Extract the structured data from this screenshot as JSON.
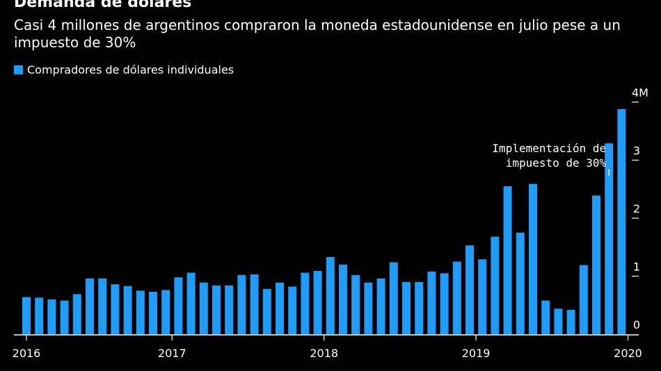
{
  "chart_data": {
    "type": "bar",
    "title": "Demanda de dólares",
    "subtitle": "Casi 4 millones de argentinos compraron la moneda estadounidense en julio pese a un impuesto de 30%",
    "series": [
      {
        "name": "Compradores de dólares individuales",
        "color": "#1e9cf7",
        "values": [
          0.64,
          0.63,
          0.6,
          0.58,
          0.69,
          0.96,
          0.96,
          0.86,
          0.83,
          0.75,
          0.73,
          0.76,
          0.98,
          1.06,
          0.89,
          0.84,
          0.84,
          1.02,
          1.03,
          0.78,
          0.89,
          0.82,
          1.06,
          1.09,
          1.33,
          1.2,
          1.02,
          0.89,
          0.96,
          1.24,
          0.9,
          0.9,
          1.08,
          1.05,
          1.25,
          1.53,
          1.29,
          1.68,
          2.55,
          1.75,
          2.59,
          0.58,
          0.44,
          0.42,
          1.19,
          2.39,
          3.29,
          3.88
        ]
      }
    ],
    "x": {
      "start": "2016-01",
      "frequency": "monthly",
      "tick_labels": [
        "2016",
        "2017",
        "2018",
        "2019",
        "2020"
      ]
    },
    "y": {
      "unit": "millones",
      "ylim": [
        0,
        4
      ],
      "tick_labels": [
        "0",
        "1",
        "2",
        "3",
        "4M"
      ],
      "side": "right",
      "grid": false
    },
    "annotation": {
      "lines": [
        "Implementación de",
        "impuesto de 30%"
      ],
      "target_month": "2019-11"
    },
    "legend_placement": "top-left"
  }
}
